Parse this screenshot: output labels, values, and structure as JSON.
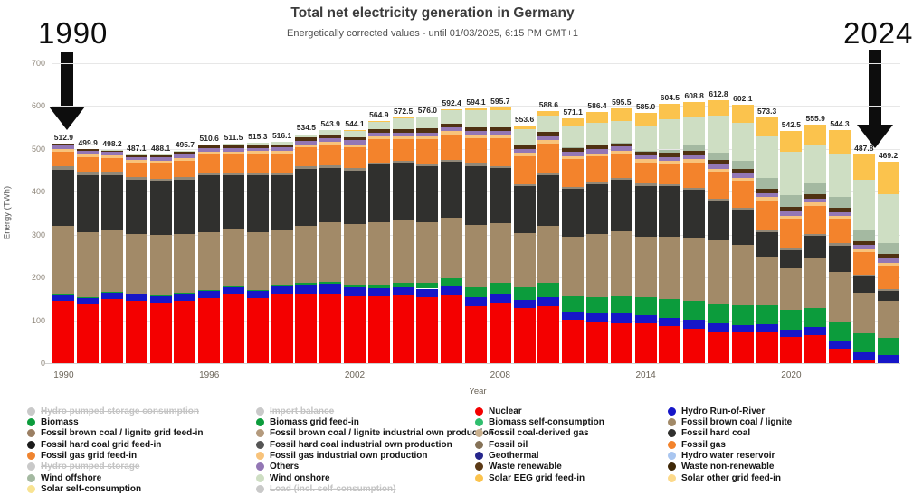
{
  "header": {
    "title": "Total net electricity generation in Germany",
    "subtitle": "Energetically corrected values - until 01/03/2025, 6:15 PM GMT+1"
  },
  "annotations": {
    "start_year": "1990",
    "end_year": "2024"
  },
  "chart_data": {
    "type": "bar",
    "stacked": true,
    "title": "Total net electricity generation in Germany",
    "subtitle": "Energetically corrected values - until 01/03/2025, 6:15 PM GMT+1",
    "xlabel": "Year",
    "ylabel": "Energy (TWh)",
    "ylim": [
      0,
      700
    ],
    "y_ticks": [
      0,
      100,
      200,
      300,
      400,
      500,
      600,
      700
    ],
    "x_tick_indices": [
      0,
      6,
      12,
      18,
      24,
      30
    ],
    "x_tick_labels": [
      "1990",
      "1996",
      "2002",
      "2008",
      "2014",
      "2020"
    ],
    "years": [
      1990,
      1991,
      1992,
      1993,
      1994,
      1995,
      1996,
      1997,
      1998,
      1999,
      2000,
      2001,
      2002,
      2003,
      2004,
      2005,
      2006,
      2007,
      2008,
      2009,
      2010,
      2011,
      2012,
      2013,
      2014,
      2015,
      2016,
      2017,
      2018,
      2019,
      2020,
      2021,
      2022,
      2023,
      2024
    ],
    "totals": [
      "512.9",
      "499.9",
      "498.2",
      "487.1",
      "488.1",
      "495.7",
      "510.6",
      "511.5",
      "515.3",
      "516.1",
      "534.5",
      "543.9",
      "544.1",
      "564.9",
      "572.5",
      "576.0",
      "592.4",
      "594.1",
      "595.7",
      "553.6",
      "588.6",
      "571.1",
      "586.4",
      "595.5",
      "585.0",
      "604.5",
      "608.8",
      "612.8",
      "602.1",
      "573.3",
      "542.5",
      "555.9",
      "544.3",
      "487.8",
      "469.2"
    ],
    "series": [
      {
        "name": "Nuclear",
        "color": "#f40000",
        "values": [
          145.1,
          140,
          150,
          145,
          141,
          145,
          152,
          161,
          152,
          161,
          161,
          163,
          156,
          157,
          158,
          155,
          159,
          133,
          141,
          128,
          133,
          102,
          94,
          92,
          92,
          87,
          80,
          72,
          72,
          71,
          61,
          65,
          33,
          7,
          0
        ]
      },
      {
        "name": "Hydro Run-of-River",
        "color": "#1616c8",
        "values": [
          15,
          13,
          16,
          16,
          17,
          18,
          16,
          16,
          16,
          18,
          22,
          22,
          22,
          19,
          20,
          19,
          20,
          21,
          20,
          19,
          21,
          18,
          22,
          23,
          20,
          19,
          21,
          20,
          17,
          20,
          18,
          19,
          17,
          19,
          18
        ]
      },
      {
        "name": "Biomass",
        "color": "#0c9c3c",
        "values": [
          1,
          1,
          1,
          1,
          1,
          1,
          2,
          2,
          3,
          3,
          4,
          5,
          6,
          8,
          10,
          14,
          19,
          23,
          27,
          30,
          33,
          36,
          39,
          41,
          43,
          44,
          45,
          45,
          45,
          45,
          45,
          45,
          44,
          43,
          42
        ]
      },
      {
        "name": "Fossil brown coal / lignite",
        "color": "#a28a68",
        "values": [
          158.8,
          150.8,
          143.0,
          139.5,
          140.2,
          137.2,
          136.6,
          133.6,
          133.8,
          127.6,
          133.0,
          138.3,
          140.1,
          144.9,
          145.4,
          141.5,
          140.5,
          145.3,
          138.7,
          126.4,
          134.1,
          138.6,
          147.2,
          151.1,
          140.9,
          145.4,
          147.6,
          148.8,
          142.7,
          113.0,
          96.7,
          114.7,
          119.9,
          95.7,
          84.5
        ]
      },
      {
        "name": "Fossil hard coal",
        "color": "#30302e",
        "values": [
          131,
          134,
          128,
          126,
          126,
          127,
          132,
          127,
          133,
          129,
          134,
          128,
          126,
          135,
          134,
          130,
          131,
          138,
          128,
          110,
          117,
          112,
          116,
          121,
          118,
          117,
          111,
          92,
          82,
          56,
          42,
          53,
          61,
          37,
          24
        ]
      },
      {
        "name": "Fossil oil",
        "color": "#918878",
        "values": [
          9,
          9,
          8,
          7,
          6,
          6,
          6,
          5,
          5,
          5,
          5,
          5,
          5,
          5,
          5,
          5,
          5,
          5,
          5,
          5,
          5,
          5,
          5,
          5,
          5,
          5,
          5,
          5,
          5,
          5,
          5,
          5,
          5,
          5,
          4
        ]
      },
      {
        "name": "Fossil gas",
        "color": "#f3832c",
        "values": [
          33,
          33,
          33,
          33,
          35,
          38,
          42,
          42,
          45,
          45,
          45,
          48,
          49,
          53,
          50,
          58,
          60,
          60,
          65,
          65,
          70,
          65,
          60,
          55,
          50,
          47,
          59,
          64,
          62,
          70,
          70,
          66,
          56,
          52,
          55
        ]
      },
      {
        "name": "Fossil gas industrial own production",
        "color": "#f8c37b",
        "values": [
          7,
          7,
          7,
          7,
          7,
          7,
          7,
          7,
          7,
          7,
          7,
          7,
          7,
          7,
          7,
          7,
          7,
          7,
          7,
          7,
          7,
          7,
          7,
          7,
          7,
          7,
          7,
          7,
          7,
          7,
          7,
          7,
          7,
          7,
          7
        ]
      },
      {
        "name": "Others",
        "color": "#9377b5",
        "values": [
          8,
          7,
          7,
          7,
          8,
          8,
          8,
          8,
          8,
          8,
          8,
          9,
          9,
          9,
          9,
          9,
          9,
          10,
          10,
          9,
          10,
          10,
          10,
          10,
          10,
          10,
          10,
          10,
          10,
          10,
          10,
          10,
          10,
          10,
          10
        ]
      },
      {
        "name": "Waste",
        "color": "#4f3112",
        "values": [
          5,
          5,
          5,
          5,
          6,
          7,
          7,
          7,
          8,
          7,
          8,
          8,
          8,
          8,
          8,
          9,
          9,
          9,
          9,
          9,
          9,
          9,
          9,
          9,
          9,
          9,
          10,
          10,
          10,
          10,
          10,
          10,
          10,
          10,
          10
        ]
      },
      {
        "name": "Wind offshore",
        "color": "#a4b9a1",
        "values": [
          0,
          0,
          0,
          0,
          0,
          0,
          0,
          0,
          0,
          0,
          0,
          0,
          0,
          0,
          0,
          0,
          0,
          0,
          0,
          0,
          0,
          0.6,
          0.7,
          0.9,
          1.4,
          8.3,
          12.4,
          17.7,
          19.3,
          24.7,
          27.3,
          24.4,
          24.8,
          23.5,
          25.7
        ]
      },
      {
        "name": "Wind onshore",
        "color": "#cedec3",
        "values": [
          0,
          0.1,
          0.2,
          0.6,
          0.9,
          1.5,
          2,
          2.9,
          4.5,
          5.5,
          7.5,
          10.5,
          15.8,
          18.7,
          25.5,
          27.2,
          30.7,
          39.7,
          40.6,
          38.6,
          37.8,
          48.3,
          50.1,
          50.8,
          55.9,
          70.9,
          66.3,
          85.7,
          88.8,
          97.2,
          101.9,
          88.4,
          98.6,
          118.7,
          115
        ]
      },
      {
        "name": "Solar",
        "color": "#fbc34d",
        "values": [
          0,
          0,
          0,
          0,
          0,
          0,
          0,
          0,
          0,
          0,
          0,
          0.1,
          0.2,
          0.3,
          0.6,
          1.3,
          2.2,
          3.1,
          4.4,
          6.6,
          11.7,
          19.6,
          26.4,
          29.7,
          32.8,
          34.9,
          34.5,
          35.6,
          41.3,
          44.4,
          48.6,
          48.4,
          58,
          59.9,
          74
        ]
      }
    ],
    "legend_position": "bottom"
  },
  "legend": {
    "columns": [
      {
        "items": [
          {
            "label": "Hydro pumped storage consumption",
            "color": "#c9c9c9",
            "disabled": true
          },
          {
            "label": "Biomass",
            "color": "#0c9c3c",
            "disabled": false
          },
          {
            "label": "Fossil brown coal / lignite grid feed-in",
            "color": "#9b7f63",
            "disabled": false
          },
          {
            "label": "Fossil hard coal grid feed-in",
            "color": "#1c1c1c",
            "disabled": false
          },
          {
            "label": "Fossil gas grid feed-in",
            "color": "#ef8430",
            "disabled": false
          },
          {
            "label": "Hydro pumped storage",
            "color": "#c9c9c9",
            "disabled": true
          },
          {
            "label": "Wind offshore",
            "color": "#a4b9a1",
            "disabled": false
          },
          {
            "label": "Solar self-consumption",
            "color": "#f8e392",
            "disabled": false
          }
        ]
      },
      {
        "items": [
          {
            "label": "Import balance",
            "color": "#c9c9c9",
            "disabled": true
          },
          {
            "label": "Biomass grid feed-in",
            "color": "#0c9c3c",
            "disabled": false
          },
          {
            "label": "Fossil brown coal / lignite industrial own production",
            "color": "#b49a7d",
            "disabled": false
          },
          {
            "label": "Fossil hard coal industrial own production",
            "color": "#555555",
            "disabled": false
          },
          {
            "label": "Fossil gas industrial own production",
            "color": "#f8c37b",
            "disabled": false
          },
          {
            "label": "Others",
            "color": "#9377b5",
            "disabled": false
          },
          {
            "label": "Wind onshore",
            "color": "#cedec3",
            "disabled": false
          },
          {
            "label": "Load (incl. self-consumption)",
            "color": "#c9c9c9",
            "disabled": true
          }
        ]
      },
      {
        "items": [
          {
            "label": "Nuclear",
            "color": "#f40000",
            "disabled": false
          },
          {
            "label": "Biomass self-consumption",
            "color": "#2fbe6e",
            "disabled": false
          },
          {
            "label": "Fossil coal-derived gas",
            "color": "#c9b08e",
            "disabled": false
          },
          {
            "label": "Fossil oil",
            "color": "#857257",
            "disabled": false
          },
          {
            "label": "Geothermal",
            "color": "#26268c",
            "disabled": false
          },
          {
            "label": "Waste renewable",
            "color": "#5c3a16",
            "disabled": false
          },
          {
            "label": "Solar EEG grid feed-in",
            "color": "#fbc34d",
            "disabled": false
          }
        ]
      },
      {
        "items": [
          {
            "label": "Hydro Run-of-River",
            "color": "#1616c8",
            "disabled": false
          },
          {
            "label": "Fossil brown coal / lignite",
            "color": "#a28a68",
            "disabled": false
          },
          {
            "label": "Fossil hard coal",
            "color": "#30302e",
            "disabled": false
          },
          {
            "label": "Fossil gas",
            "color": "#f3832c",
            "disabled": false
          },
          {
            "label": "Hydro water reservoir",
            "color": "#a9c6f0",
            "disabled": false
          },
          {
            "label": "Waste non-renewable",
            "color": "#3f2808",
            "disabled": false
          },
          {
            "label": "Solar other grid feed-in",
            "color": "#fcd98a",
            "disabled": false
          }
        ]
      }
    ]
  }
}
